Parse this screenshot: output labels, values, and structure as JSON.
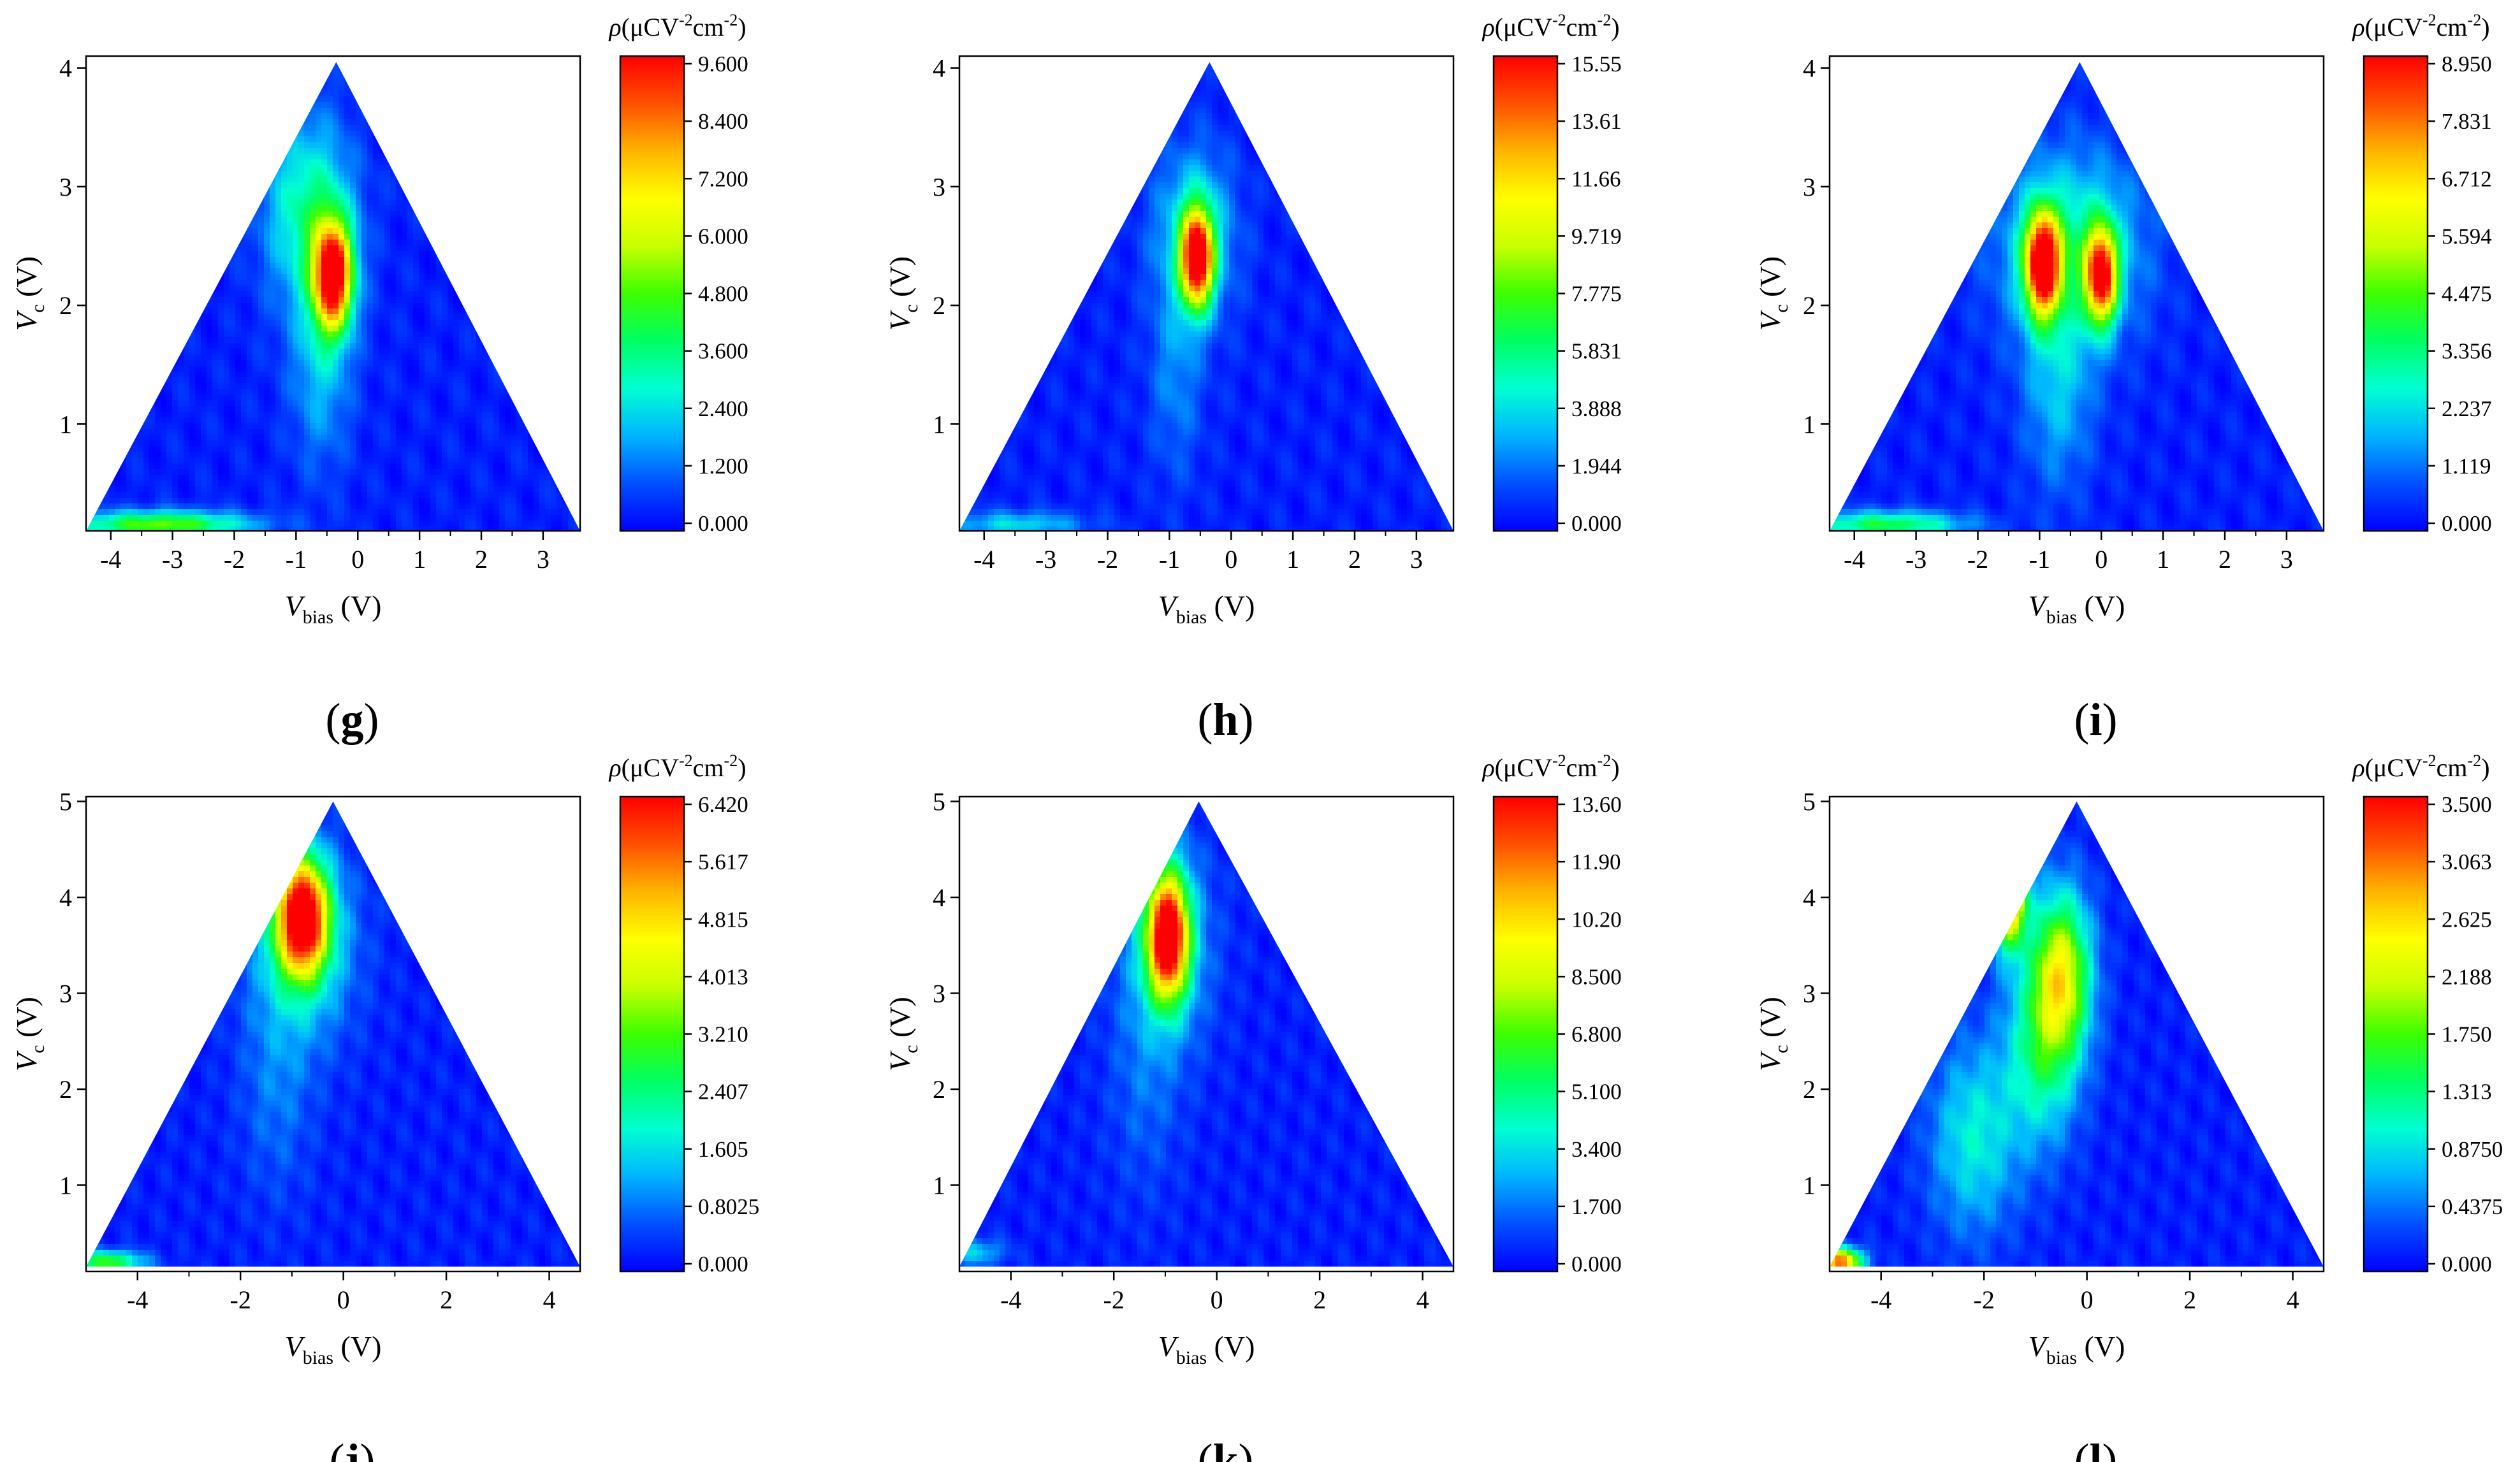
{
  "cbar_label": {
    "main": "ρ(μCV",
    "exp1": "-2",
    "mid": "cm",
    "exp2": "-2",
    "end": ")"
  },
  "xlabel": {
    "main": "V",
    "sub": "bias",
    "unit": " (V)"
  },
  "ylabel": {
    "main": "V",
    "sub": "c",
    "unit": " (V)"
  },
  "colors": {
    "stops": [
      "#0000ff",
      "#0050ff",
      "#00b4ff",
      "#00ffd2",
      "#00ff64",
      "#3cff00",
      "#c8ff00",
      "#ffff00",
      "#ffb400",
      "#ff5000",
      "#ff0000"
    ],
    "background": "#0000ff"
  },
  "chart_data": [
    {
      "panel_label": "(g)",
      "type": "heatmap",
      "xlim": [
        -4.4,
        3.6
      ],
      "ylim": [
        0.1,
        4.1
      ],
      "xticks": [
        "-4",
        "-3",
        "-2",
        "-1",
        "0",
        "1",
        "2",
        "3"
      ],
      "yticks": [
        "1",
        "2",
        "3",
        "4"
      ],
      "region": {
        "left": [
          -4.4,
          0.1
        ],
        "apex": [
          -0.35,
          4.05
        ],
        "right": [
          3.6,
          0.1
        ]
      },
      "colorbar_ticks": [
        "0.000",
        "1.200",
        "2.400",
        "3.600",
        "4.800",
        "6.000",
        "7.200",
        "8.400",
        "9.600"
      ],
      "zmax": 9.6,
      "hotspots": [
        {
          "x": -0.4,
          "y": 2.25,
          "sx": 0.22,
          "sy": 0.32,
          "v": 1.0
        },
        {
          "x": -0.8,
          "y": 2.8,
          "sx": 0.5,
          "sy": 0.55,
          "v": 0.32
        },
        {
          "x": -0.6,
          "y": 1.5,
          "sx": 0.35,
          "sy": 0.6,
          "v": 0.18
        },
        {
          "x": -3.2,
          "y": 0.15,
          "sx": 1.0,
          "sy": 0.08,
          "v": 0.5
        }
      ]
    },
    {
      "panel_label": "(h)",
      "type": "heatmap",
      "xlim": [
        -4.4,
        3.6
      ],
      "ylim": [
        0.1,
        4.1
      ],
      "xticks": [
        "-4",
        "-3",
        "-2",
        "-1",
        "0",
        "1",
        "2",
        "3"
      ],
      "yticks": [
        "1",
        "2",
        "3",
        "4"
      ],
      "region": {
        "left": [
          -4.4,
          0.1
        ],
        "apex": [
          -0.35,
          4.05
        ],
        "right": [
          3.6,
          0.1
        ]
      },
      "colorbar_ticks": [
        "0.000",
        "1.944",
        "3.888",
        "5.831",
        "7.775",
        "9.719",
        "11.66",
        "13.61",
        "15.55"
      ],
      "zmax": 15.55,
      "hotspots": [
        {
          "x": -0.55,
          "y": 2.4,
          "sx": 0.18,
          "sy": 0.28,
          "v": 1.0
        },
        {
          "x": -0.6,
          "y": 2.6,
          "sx": 0.45,
          "sy": 0.5,
          "v": 0.25
        },
        {
          "x": -0.9,
          "y": 1.4,
          "sx": 0.3,
          "sy": 0.6,
          "v": 0.12
        },
        {
          "x": -3.5,
          "y": 0.15,
          "sx": 0.8,
          "sy": 0.08,
          "v": 0.22
        }
      ]
    },
    {
      "panel_label": "(i)",
      "type": "heatmap",
      "xlim": [
        -4.4,
        3.6
      ],
      "ylim": [
        0.1,
        4.1
      ],
      "xticks": [
        "-4",
        "-3",
        "-2",
        "-1",
        "0",
        "1",
        "2",
        "3"
      ],
      "yticks": [
        "1",
        "2",
        "3",
        "4"
      ],
      "region": {
        "left": [
          -4.4,
          0.1
        ],
        "apex": [
          -0.35,
          4.05
        ],
        "right": [
          3.6,
          0.1
        ]
      },
      "colorbar_ticks": [
        "0.000",
        "1.119",
        "2.237",
        "3.356",
        "4.475",
        "5.594",
        "6.712",
        "7.831",
        "8.950"
      ],
      "zmax": 8.95,
      "hotspots": [
        {
          "x": -0.95,
          "y": 2.35,
          "sx": 0.2,
          "sy": 0.3,
          "v": 1.0
        },
        {
          "x": 0.0,
          "y": 2.25,
          "sx": 0.18,
          "sy": 0.28,
          "v": 0.9
        },
        {
          "x": -0.5,
          "y": 2.5,
          "sx": 0.8,
          "sy": 0.55,
          "v": 0.3
        },
        {
          "x": -0.7,
          "y": 1.3,
          "sx": 0.4,
          "sy": 0.6,
          "v": 0.18
        },
        {
          "x": -3.5,
          "y": 0.15,
          "sx": 0.9,
          "sy": 0.08,
          "v": 0.4
        }
      ]
    },
    {
      "panel_label": "(j)",
      "type": "heatmap",
      "xlim": [
        -5.0,
        4.6
      ],
      "ylim": [
        0.1,
        5.05
      ],
      "xticks": [
        "-4",
        "-2",
        "0",
        "2",
        "4"
      ],
      "yticks": [
        "1",
        "2",
        "3",
        "4",
        "5"
      ],
      "region": {
        "left": [
          -5.0,
          0.15
        ],
        "apex": [
          -0.2,
          5.0
        ],
        "right": [
          4.6,
          0.15
        ]
      },
      "colorbar_ticks": [
        "0.000",
        "0.8025",
        "1.605",
        "2.407",
        "3.210",
        "4.013",
        "4.815",
        "5.617",
        "6.420"
      ],
      "zmax": 6.42,
      "hotspots": [
        {
          "x": -0.8,
          "y": 3.8,
          "sx": 0.35,
          "sy": 0.42,
          "v": 1.0
        },
        {
          "x": -0.8,
          "y": 3.5,
          "sx": 0.7,
          "sy": 0.7,
          "v": 0.25
        },
        {
          "x": -1.3,
          "y": 2.0,
          "sx": 0.5,
          "sy": 0.8,
          "v": 0.1
        },
        {
          "x": -4.6,
          "y": 0.2,
          "sx": 0.5,
          "sy": 0.08,
          "v": 0.45
        }
      ]
    },
    {
      "panel_label": "(k)",
      "type": "heatmap",
      "xlim": [
        -5.0,
        4.6
      ],
      "ylim": [
        0.1,
        5.05
      ],
      "xticks": [
        "-4",
        "-2",
        "0",
        "2",
        "4"
      ],
      "yticks": [
        "1",
        "2",
        "3",
        "4",
        "5"
      ],
      "region": {
        "left": [
          -5.0,
          0.15
        ],
        "apex": [
          -0.35,
          5.0
        ],
        "right": [
          4.6,
          0.15
        ]
      },
      "colorbar_ticks": [
        "0.000",
        "1.700",
        "3.400",
        "5.100",
        "6.800",
        "8.500",
        "10.20",
        "11.90",
        "13.60"
      ],
      "zmax": 13.6,
      "hotspots": [
        {
          "x": -0.95,
          "y": 3.6,
          "sx": 0.28,
          "sy": 0.45,
          "v": 1.0
        },
        {
          "x": -1.0,
          "y": 3.5,
          "sx": 0.6,
          "sy": 0.75,
          "v": 0.22
        },
        {
          "x": -1.4,
          "y": 2.0,
          "sx": 0.5,
          "sy": 0.8,
          "v": 0.08
        },
        {
          "x": -4.7,
          "y": 0.3,
          "sx": 0.4,
          "sy": 0.1,
          "v": 0.2
        }
      ]
    },
    {
      "panel_label": "(l)",
      "type": "heatmap",
      "xlim": [
        -5.0,
        4.6
      ],
      "ylim": [
        0.1,
        5.05
      ],
      "xticks": [
        "-4",
        "-2",
        "0",
        "2",
        "4"
      ],
      "yticks": [
        "1",
        "2",
        "3",
        "4",
        "5"
      ],
      "region": {
        "left": [
          -5.0,
          0.15
        ],
        "apex": [
          -0.2,
          5.0
        ],
        "right": [
          4.6,
          0.15
        ]
      },
      "colorbar_ticks": [
        "0.000",
        "0.4375",
        "0.8750",
        "1.313",
        "1.750",
        "2.188",
        "2.625",
        "3.063",
        "3.500"
      ],
      "zmax": 3.5,
      "hotspots": [
        {
          "x": -1.5,
          "y": 4.1,
          "sx": 0.22,
          "sy": 0.4,
          "v": 1.0
        },
        {
          "x": -0.5,
          "y": 3.2,
          "sx": 0.4,
          "sy": 0.6,
          "v": 0.6
        },
        {
          "x": -0.9,
          "y": 2.4,
          "sx": 0.5,
          "sy": 0.7,
          "v": 0.3
        },
        {
          "x": -2.2,
          "y": 1.5,
          "sx": 0.6,
          "sy": 0.7,
          "v": 0.25
        },
        {
          "x": -4.8,
          "y": 0.2,
          "sx": 0.3,
          "sy": 0.1,
          "v": 0.85
        }
      ]
    }
  ]
}
